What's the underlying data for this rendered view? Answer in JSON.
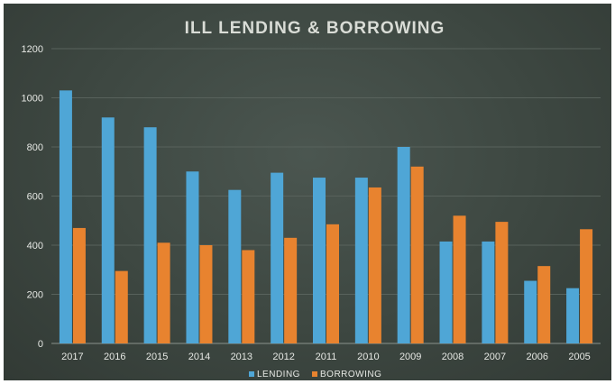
{
  "chart_data": {
    "type": "bar",
    "title": "ILL LENDING & BORROWING",
    "xlabel": "",
    "ylabel": "",
    "categories": [
      "2017",
      "2016",
      "2015",
      "2014",
      "2013",
      "2012",
      "2011",
      "2010",
      "2009",
      "2008",
      "2007",
      "2006",
      "2005"
    ],
    "series": [
      {
        "name": "LENDING",
        "color": "#4fa6d6",
        "values": [
          1030,
          920,
          880,
          700,
          625,
          695,
          675,
          675,
          800,
          415,
          415,
          255,
          225
        ]
      },
      {
        "name": "BORROWING",
        "color": "#e8832f",
        "values": [
          470,
          295,
          410,
          400,
          380,
          430,
          485,
          635,
          720,
          520,
          495,
          315,
          465
        ]
      }
    ],
    "ylim": [
      0,
      1200
    ],
    "yticks": [
      0,
      200,
      400,
      600,
      800,
      1000,
      1200
    ],
    "grid": true,
    "legend_position": "bottom"
  }
}
